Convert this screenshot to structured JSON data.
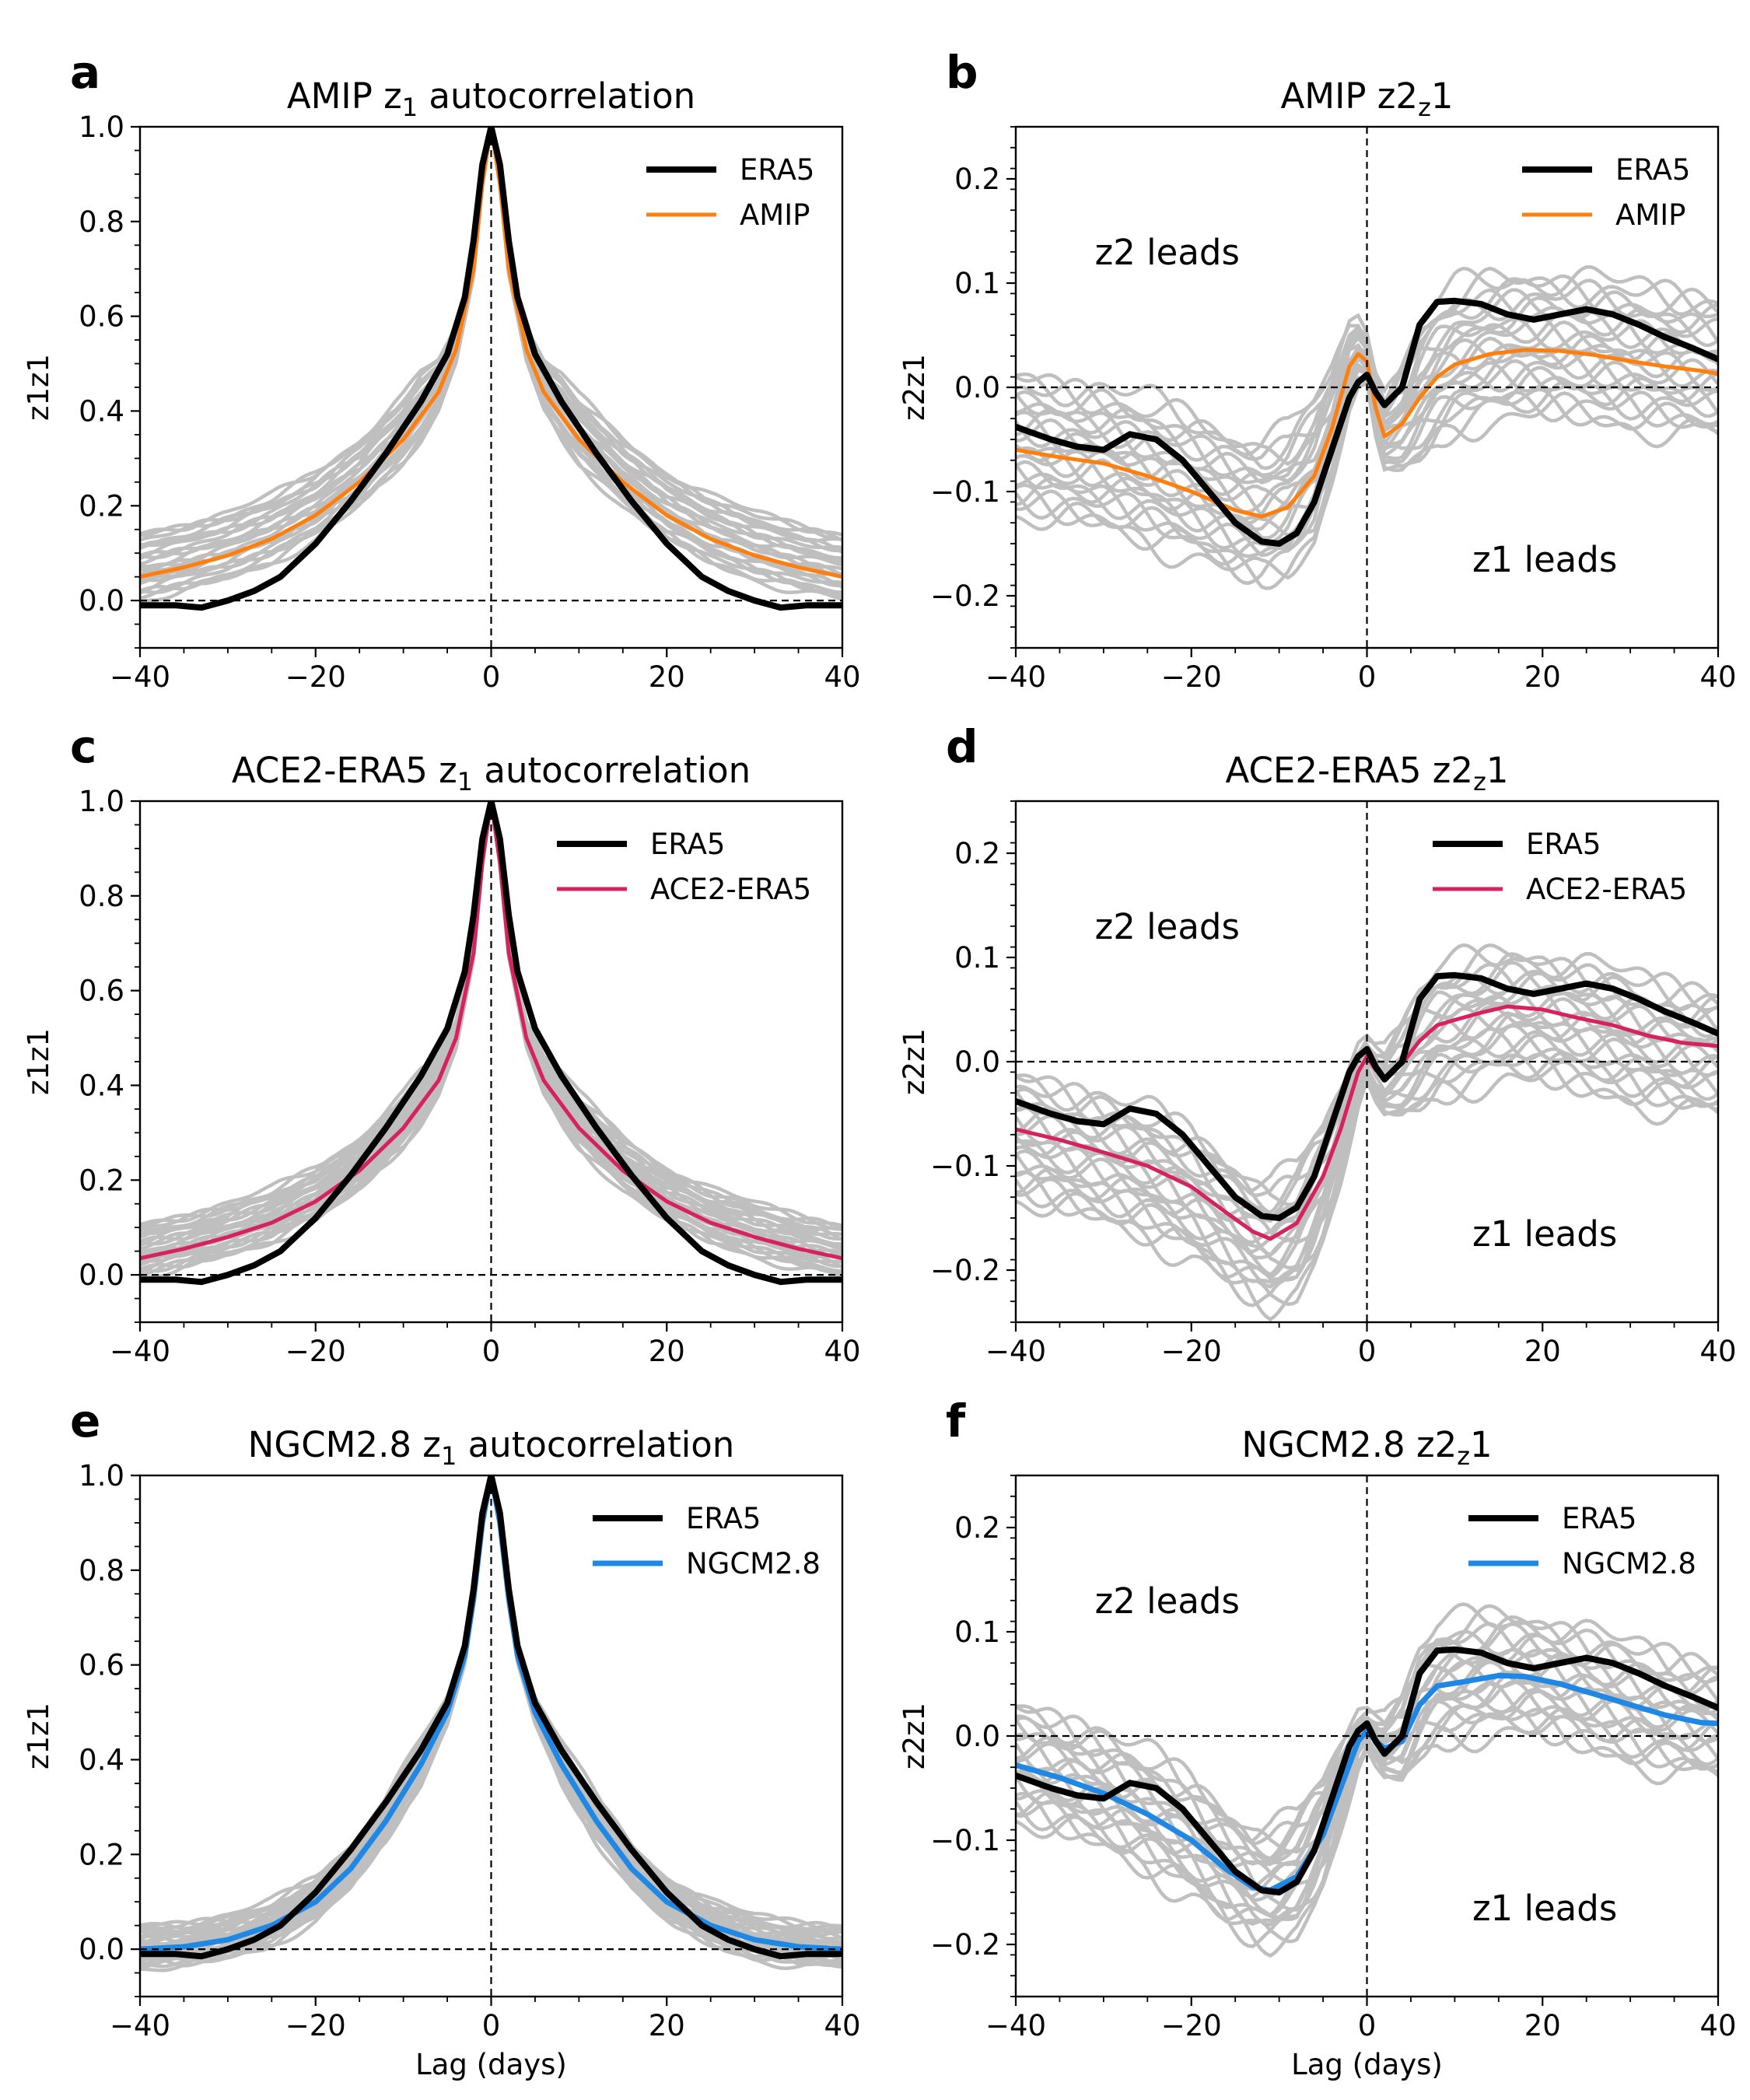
{
  "colors": {
    "era5": "#000000",
    "amip": "#ff7f0e",
    "ace2": "#d62260",
    "ngcm": "#1f88e5",
    "ensemble": "#bfbfbf"
  },
  "chart_data": [
    {
      "type": "line",
      "panel": "a",
      "title_prefix": "AMIP z",
      "title_sub": "1",
      "title_suffix": " autocorrelation",
      "xlabel": "",
      "ylabel": "z1z1",
      "xlim": [
        -40,
        40
      ],
      "ylim": [
        -0.1,
        1.0
      ],
      "xticks": [
        -40,
        -20,
        0,
        20,
        40
      ],
      "yticks": [
        0.0,
        0.2,
        0.4,
        0.6,
        0.8,
        1.0
      ],
      "legend_position": "top-right",
      "reference_lines": {
        "x": 0,
        "y": 0
      },
      "ensemble_spread": {
        "center_series": "AMIP",
        "min_offset": -0.05,
        "max_offset": 0.09,
        "members": 22
      },
      "series": [
        {
          "name": "ERA5",
          "color": "#000000",
          "width": 8,
          "x": [
            -40,
            -36,
            -33,
            -30,
            -27,
            -24,
            -20,
            -16,
            -12,
            -8,
            -5,
            -3,
            -2,
            -1,
            0,
            1,
            2,
            3,
            5,
            8,
            12,
            16,
            20,
            24,
            27,
            30,
            33,
            36,
            40
          ],
          "y": [
            -0.01,
            -0.01,
            -0.015,
            0.0,
            0.02,
            0.05,
            0.12,
            0.21,
            0.31,
            0.42,
            0.52,
            0.64,
            0.76,
            0.92,
            1.0,
            0.92,
            0.76,
            0.64,
            0.52,
            0.42,
            0.31,
            0.21,
            0.12,
            0.05,
            0.02,
            0.0,
            -0.015,
            -0.01,
            -0.01
          ]
        },
        {
          "name": "AMIP",
          "color": "#ff7f0e",
          "width": 5,
          "x": [
            -40,
            -35,
            -30,
            -25,
            -20,
            -15,
            -10,
            -6,
            -4,
            -2,
            -1,
            0,
            1,
            2,
            4,
            6,
            10,
            15,
            20,
            25,
            30,
            35,
            40
          ],
          "y": [
            0.05,
            0.07,
            0.095,
            0.13,
            0.18,
            0.25,
            0.34,
            0.44,
            0.53,
            0.7,
            0.88,
            1.0,
            0.88,
            0.7,
            0.53,
            0.44,
            0.34,
            0.25,
            0.18,
            0.13,
            0.095,
            0.07,
            0.05
          ]
        }
      ]
    },
    {
      "type": "line",
      "panel": "b",
      "title_prefix": "AMIP z2",
      "title_sub": "z",
      "title_suffix": "1",
      "xlabel": "",
      "ylabel": "z2z1",
      "xlim": [
        -40,
        40
      ],
      "ylim": [
        -0.25,
        0.25
      ],
      "xticks": [
        -40,
        -20,
        0,
        20,
        40
      ],
      "yticks": [
        -0.2,
        -0.1,
        0.0,
        0.1,
        0.2
      ],
      "legend_position": "top-right",
      "reference_lines": {
        "x": 0,
        "y": 0
      },
      "annotations": [
        {
          "text": "z2 leads",
          "x": -31,
          "y": 0.13
        },
        {
          "text": "z1 leads",
          "x": 12,
          "y": -0.165
        }
      ],
      "ensemble_spread": {
        "center_series": "AMIP",
        "min_offset": -0.06,
        "max_offset": 0.07,
        "members": 22
      },
      "series": [
        {
          "name": "ERA5",
          "color": "#000000",
          "width": 8,
          "x": [
            -40,
            -36,
            -33,
            -30,
            -27,
            -24,
            -21,
            -18,
            -15,
            -12,
            -10,
            -8,
            -6,
            -4,
            -2,
            -1,
            0,
            1,
            2,
            4,
            6,
            8,
            10,
            13,
            16,
            19,
            22,
            25,
            28,
            31,
            34,
            37,
            40
          ],
          "y": [
            -0.038,
            -0.05,
            -0.057,
            -0.06,
            -0.045,
            -0.05,
            -0.07,
            -0.1,
            -0.13,
            -0.148,
            -0.15,
            -0.14,
            -0.11,
            -0.06,
            -0.01,
            0.005,
            0.012,
            -0.005,
            -0.017,
            0.0,
            0.06,
            0.082,
            0.083,
            0.08,
            0.07,
            0.065,
            0.07,
            0.075,
            0.07,
            0.06,
            0.048,
            0.038,
            0.027
          ]
        },
        {
          "name": "AMIP",
          "color": "#ff7f0e",
          "width": 5,
          "x": [
            -40,
            -35,
            -30,
            -25,
            -20,
            -15,
            -12,
            -9,
            -6,
            -4,
            -2,
            -1,
            0,
            1,
            2,
            4,
            6,
            8,
            10,
            14,
            18,
            22,
            26,
            30,
            34,
            38,
            40
          ],
          "y": [
            -0.06,
            -0.067,
            -0.073,
            -0.085,
            -0.1,
            -0.118,
            -0.124,
            -0.115,
            -0.085,
            -0.04,
            0.02,
            0.032,
            0.025,
            -0.02,
            -0.047,
            -0.035,
            -0.01,
            0.01,
            0.022,
            0.032,
            0.036,
            0.035,
            0.031,
            0.025,
            0.02,
            0.016,
            0.013
          ]
        }
      ]
    },
    {
      "type": "line",
      "panel": "c",
      "title_prefix": "ACE2-ERA5 z",
      "title_sub": "1",
      "title_suffix": " autocorrelation",
      "xlabel": "",
      "ylabel": "z1z1",
      "xlim": [
        -40,
        40
      ],
      "ylim": [
        -0.1,
        1.0
      ],
      "xticks": [
        -40,
        -20,
        0,
        20,
        40
      ],
      "yticks": [
        0.0,
        0.2,
        0.4,
        0.6,
        0.8,
        1.0
      ],
      "legend_position": "top-right",
      "reference_lines": {
        "x": 0,
        "y": 0
      },
      "ensemble_spread": {
        "center_series": "ACE2-ERA5",
        "min_offset": -0.04,
        "max_offset": 0.07,
        "members": 22
      },
      "series": [
        {
          "name": "ERA5",
          "color": "#000000",
          "width": 8,
          "x": [
            -40,
            -36,
            -33,
            -30,
            -27,
            -24,
            -20,
            -16,
            -12,
            -8,
            -5,
            -3,
            -2,
            -1,
            0,
            1,
            2,
            3,
            5,
            8,
            12,
            16,
            20,
            24,
            27,
            30,
            33,
            36,
            40
          ],
          "y": [
            -0.01,
            -0.01,
            -0.015,
            0.0,
            0.02,
            0.05,
            0.12,
            0.21,
            0.31,
            0.42,
            0.52,
            0.64,
            0.76,
            0.92,
            1.0,
            0.92,
            0.76,
            0.64,
            0.52,
            0.42,
            0.31,
            0.21,
            0.12,
            0.05,
            0.02,
            0.0,
            -0.015,
            -0.01,
            -0.01
          ]
        },
        {
          "name": "ACE2-ERA5",
          "color": "#d62260",
          "width": 5,
          "x": [
            -40,
            -35,
            -30,
            -25,
            -20,
            -15,
            -10,
            -6,
            -4,
            -2,
            -1,
            0,
            1,
            2,
            4,
            6,
            10,
            15,
            20,
            25,
            30,
            35,
            40
          ],
          "y": [
            0.035,
            0.055,
            0.08,
            0.11,
            0.155,
            0.22,
            0.31,
            0.41,
            0.5,
            0.68,
            0.87,
            1.0,
            0.87,
            0.68,
            0.5,
            0.41,
            0.31,
            0.22,
            0.155,
            0.11,
            0.08,
            0.055,
            0.035
          ]
        }
      ]
    },
    {
      "type": "line",
      "panel": "d",
      "title_prefix": "ACE2-ERA5 z2",
      "title_sub": "z",
      "title_suffix": "1",
      "xlabel": "",
      "ylabel": "z2z1",
      "xlim": [
        -40,
        40
      ],
      "ylim": [
        -0.25,
        0.25
      ],
      "xticks": [
        -40,
        -20,
        0,
        20,
        40
      ],
      "yticks": [
        -0.2,
        -0.1,
        0.0,
        0.1,
        0.2
      ],
      "legend_position": "top-right",
      "reference_lines": {
        "x": 0,
        "y": 0
      },
      "annotations": [
        {
          "text": "z2 leads",
          "x": -31,
          "y": 0.13
        },
        {
          "text": "z1 leads",
          "x": 12,
          "y": -0.165
        }
      ],
      "ensemble_spread": {
        "center_series": "ACE2-ERA5",
        "min_offset": -0.065,
        "max_offset": 0.05,
        "members": 22
      },
      "series": [
        {
          "name": "ERA5",
          "color": "#000000",
          "width": 8,
          "x": [
            -40,
            -36,
            -33,
            -30,
            -27,
            -24,
            -21,
            -18,
            -15,
            -12,
            -10,
            -8,
            -6,
            -4,
            -2,
            -1,
            0,
            1,
            2,
            4,
            6,
            8,
            10,
            13,
            16,
            19,
            22,
            25,
            28,
            31,
            34,
            37,
            40
          ],
          "y": [
            -0.038,
            -0.05,
            -0.057,
            -0.06,
            -0.045,
            -0.05,
            -0.07,
            -0.1,
            -0.13,
            -0.148,
            -0.15,
            -0.14,
            -0.11,
            -0.06,
            -0.01,
            0.005,
            0.012,
            -0.005,
            -0.017,
            0.0,
            0.06,
            0.082,
            0.083,
            0.08,
            0.07,
            0.065,
            0.07,
            0.075,
            0.07,
            0.06,
            0.048,
            0.038,
            0.027
          ]
        },
        {
          "name": "ACE2-ERA5",
          "color": "#d62260",
          "width": 5,
          "x": [
            -40,
            -35,
            -30,
            -25,
            -20,
            -16,
            -13,
            -11,
            -8,
            -5,
            -3,
            -1,
            0,
            1,
            2,
            4,
            6,
            8,
            10,
            13,
            16,
            20,
            24,
            28,
            32,
            36,
            40
          ],
          "y": [
            -0.065,
            -0.075,
            -0.087,
            -0.1,
            -0.12,
            -0.145,
            -0.163,
            -0.17,
            -0.155,
            -0.11,
            -0.065,
            -0.01,
            0.005,
            -0.008,
            -0.015,
            -0.002,
            0.02,
            0.035,
            0.04,
            0.047,
            0.053,
            0.05,
            0.042,
            0.035,
            0.025,
            0.018,
            0.015
          ]
        }
      ]
    },
    {
      "type": "line",
      "panel": "e",
      "title_prefix": "NGCM2.8 z",
      "title_sub": "1",
      "title_suffix": " autocorrelation",
      "xlabel": "Lag (days)",
      "ylabel": "z1z1",
      "xlim": [
        -40,
        40
      ],
      "ylim": [
        -0.1,
        1.0
      ],
      "xticks": [
        -40,
        -20,
        0,
        20,
        40
      ],
      "yticks": [
        0.0,
        0.2,
        0.4,
        0.6,
        0.8,
        1.0
      ],
      "legend_position": "top-right",
      "reference_lines": {
        "x": 0,
        "y": 0
      },
      "ensemble_spread": {
        "center_series": "NGCM2.8",
        "min_offset": -0.04,
        "max_offset": 0.05,
        "members": 22
      },
      "series": [
        {
          "name": "ERA5",
          "color": "#000000",
          "width": 8,
          "x": [
            -40,
            -36,
            -33,
            -30,
            -27,
            -24,
            -20,
            -16,
            -12,
            -8,
            -5,
            -3,
            -2,
            -1,
            0,
            1,
            2,
            3,
            5,
            8,
            12,
            16,
            20,
            24,
            27,
            30,
            33,
            36,
            40
          ],
          "y": [
            -0.01,
            -0.01,
            -0.015,
            0.0,
            0.02,
            0.05,
            0.12,
            0.21,
            0.31,
            0.42,
            0.52,
            0.64,
            0.76,
            0.92,
            1.0,
            0.92,
            0.76,
            0.64,
            0.52,
            0.42,
            0.31,
            0.21,
            0.12,
            0.05,
            0.02,
            0.0,
            -0.015,
            -0.01,
            -0.01
          ]
        },
        {
          "name": "NGCM2.8",
          "color": "#1f88e5",
          "width": 7,
          "x": [
            -40,
            -35,
            -30,
            -25,
            -20,
            -16,
            -12,
            -8,
            -5,
            -3,
            -2,
            -1,
            0,
            1,
            2,
            3,
            5,
            8,
            12,
            16,
            20,
            25,
            30,
            35,
            40
          ],
          "y": [
            0.0,
            0.005,
            0.02,
            0.05,
            0.1,
            0.17,
            0.27,
            0.39,
            0.5,
            0.62,
            0.74,
            0.9,
            1.0,
            0.9,
            0.74,
            0.62,
            0.5,
            0.39,
            0.27,
            0.17,
            0.1,
            0.05,
            0.02,
            0.005,
            0.0
          ]
        }
      ]
    },
    {
      "type": "line",
      "panel": "f",
      "title_prefix": "NGCM2.8 z2",
      "title_sub": "z",
      "title_suffix": "1",
      "xlabel": "Lag (days)",
      "ylabel": "z2z1",
      "xlim": [
        -40,
        40
      ],
      "ylim": [
        -0.25,
        0.25
      ],
      "xticks": [
        -40,
        -20,
        0,
        20,
        40
      ],
      "yticks": [
        -0.2,
        -0.1,
        0.0,
        0.1,
        0.2
      ],
      "legend_position": "top-right",
      "reference_lines": {
        "x": 0,
        "y": 0
      },
      "annotations": [
        {
          "text": "z2 leads",
          "x": -31,
          "y": 0.13
        },
        {
          "text": "z1 leads",
          "x": 12,
          "y": -0.165
        }
      ],
      "ensemble_spread": {
        "center_series": "NGCM2.8",
        "min_offset": -0.05,
        "max_offset": 0.055,
        "members": 22
      },
      "series": [
        {
          "name": "ERA5",
          "color": "#000000",
          "width": 8,
          "x": [
            -40,
            -36,
            -33,
            -30,
            -27,
            -24,
            -21,
            -18,
            -15,
            -12,
            -10,
            -8,
            -6,
            -4,
            -2,
            -1,
            0,
            1,
            2,
            4,
            6,
            8,
            10,
            13,
            16,
            19,
            22,
            25,
            28,
            31,
            34,
            37,
            40
          ],
          "y": [
            -0.038,
            -0.05,
            -0.057,
            -0.06,
            -0.045,
            -0.05,
            -0.07,
            -0.1,
            -0.13,
            -0.148,
            -0.15,
            -0.14,
            -0.11,
            -0.06,
            -0.01,
            0.005,
            0.012,
            -0.005,
            -0.017,
            0.0,
            0.06,
            0.082,
            0.083,
            0.08,
            0.07,
            0.065,
            0.07,
            0.075,
            0.07,
            0.06,
            0.048,
            0.038,
            0.027
          ]
        },
        {
          "name": "NGCM2.8",
          "color": "#1f88e5",
          "width": 7,
          "x": [
            -40,
            -35,
            -30,
            -25,
            -20,
            -16,
            -13,
            -11,
            -8,
            -5,
            -3,
            -1,
            0,
            1,
            2,
            4,
            6,
            8,
            11,
            15,
            18,
            22,
            26,
            30,
            34,
            38,
            40
          ],
          "y": [
            -0.028,
            -0.04,
            -0.055,
            -0.075,
            -0.1,
            -0.128,
            -0.145,
            -0.148,
            -0.135,
            -0.095,
            -0.05,
            -0.005,
            0.005,
            -0.005,
            -0.012,
            -0.005,
            0.03,
            0.048,
            0.052,
            0.058,
            0.057,
            0.05,
            0.04,
            0.03,
            0.02,
            0.013,
            0.012
          ]
        }
      ]
    }
  ]
}
